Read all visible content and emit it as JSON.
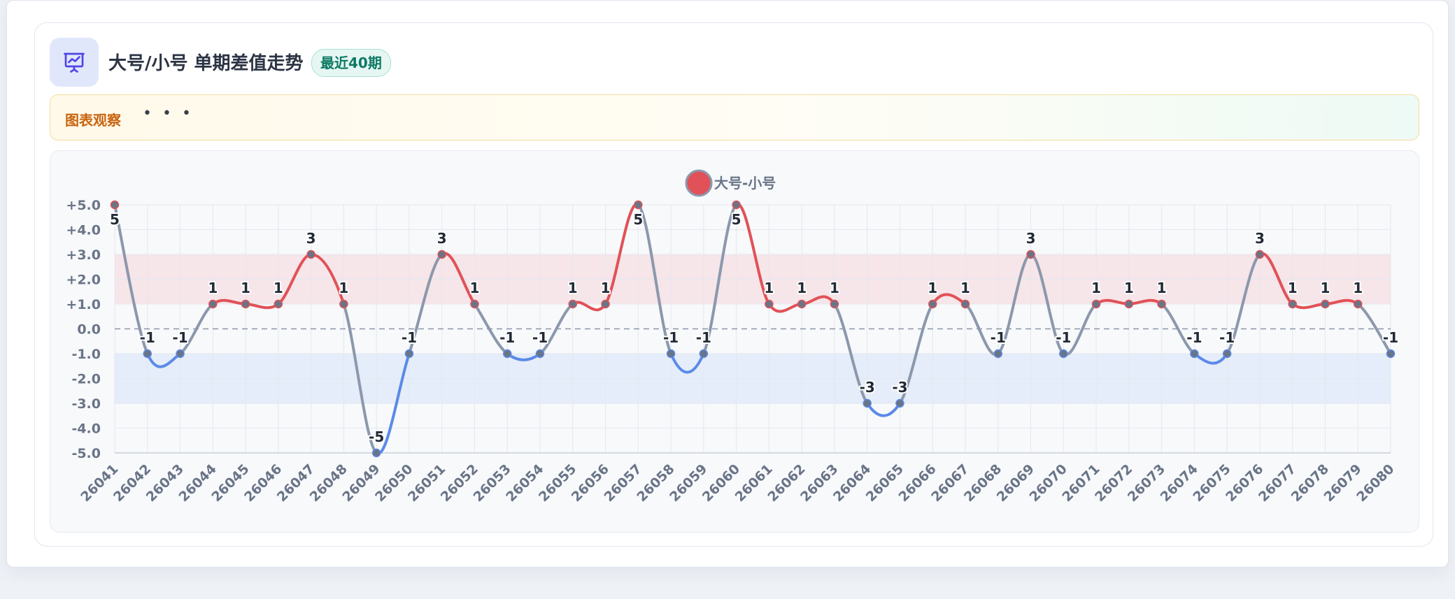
{
  "header": {
    "title": "大号/小号 单期差值走势",
    "badge": "最近40期",
    "icon": "presentation-chart-icon"
  },
  "observation": {
    "label": "图表观察",
    "dots": "• • •"
  },
  "colors": {
    "positive": "#e05257",
    "negative": "#5b8ae8",
    "neutral": "#8c98ac",
    "point": "#6a7487",
    "band_positive": "#f6e5e9",
    "band_negative": "#e5edfa",
    "icon_accent": "#4f46e5"
  },
  "chart_data": {
    "type": "line",
    "legend": {
      "label": "大号-小号",
      "placement": "top-center"
    },
    "x": [
      "26041",
      "26042",
      "26043",
      "26044",
      "26045",
      "26046",
      "26047",
      "26048",
      "26049",
      "26050",
      "26051",
      "26052",
      "26053",
      "26054",
      "26055",
      "26056",
      "26057",
      "26058",
      "26059",
      "26060",
      "26061",
      "26062",
      "26063",
      "26064",
      "26065",
      "26066",
      "26067",
      "26068",
      "26069",
      "26070",
      "26071",
      "26072",
      "26073",
      "26074",
      "26075",
      "26076",
      "26077",
      "26078",
      "26079",
      "26080"
    ],
    "series": [
      {
        "name": "大号-小号",
        "values": [
          5,
          -1,
          -1,
          1,
          1,
          1,
          3,
          1,
          -5,
          -1,
          3,
          1,
          -1,
          -1,
          1,
          1,
          5,
          -1,
          -1,
          5,
          1,
          1,
          1,
          -3,
          -3,
          1,
          1,
          -1,
          3,
          -1,
          1,
          1,
          1,
          -1,
          -1,
          3,
          1,
          1,
          1,
          -1
        ]
      }
    ],
    "ylim": [
      -5,
      5
    ],
    "yticks": [
      "+5.0",
      "+4.0",
      "+3.0",
      "+2.0",
      "+1.0",
      "0.0",
      "-1.0",
      "-2.0",
      "-3.0",
      "-4.0",
      "-5.0"
    ],
    "bands": [
      {
        "from": 1,
        "to": 3,
        "tone": "positive"
      },
      {
        "from": -3,
        "to": -1,
        "tone": "negative"
      }
    ],
    "zero_line": "dashed",
    "grid": true
  }
}
